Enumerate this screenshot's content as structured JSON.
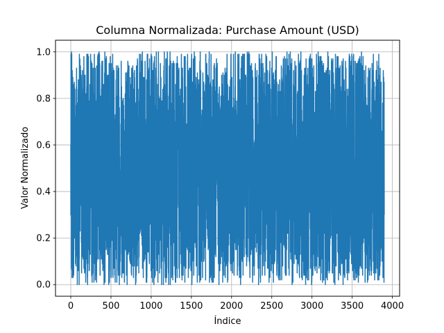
{
  "chart_data": {
    "type": "line",
    "title": "Columna Normalizada: Purchase Amount (USD)",
    "xlabel": "Índice",
    "ylabel": "Valor Normalizado",
    "xlim": [
      -190,
      4090
    ],
    "ylim": [
      -0.05,
      1.05
    ],
    "xticks": [
      0,
      500,
      1000,
      1500,
      2000,
      2500,
      3000,
      3500,
      4000
    ],
    "xtick_labels": [
      "0",
      "500",
      "1000",
      "1500",
      "2000",
      "2500",
      "3000",
      "3500",
      "4000"
    ],
    "yticks": [
      0.0,
      0.2,
      0.4,
      0.6,
      0.8,
      1.0
    ],
    "ytick_labels": [
      "0.0",
      "0.2",
      "0.4",
      "0.6",
      "0.8",
      "1.0"
    ],
    "grid": true,
    "series": [
      {
        "color": "#1f77b4",
        "x_range": [
          0,
          3899
        ],
        "value_range": [
          0.0,
          1.0
        ],
        "seed": 7
      }
    ]
  }
}
